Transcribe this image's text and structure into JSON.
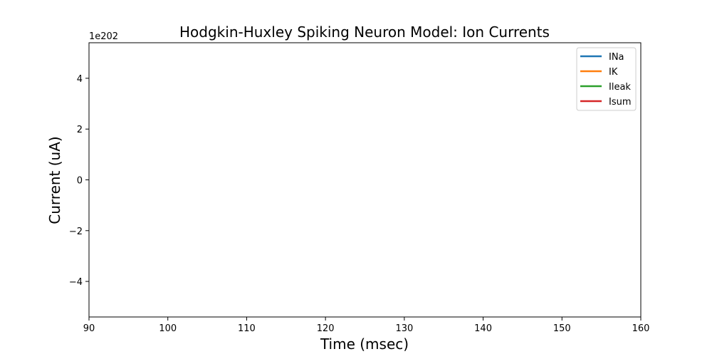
{
  "chart_data": {
    "type": "line",
    "title": "Hodgkin-Huxley Spiking Neuron Model: Ion Currents",
    "xlabel": "Time (msec)",
    "ylabel": "Current (uA)",
    "xlim": [
      90,
      160
    ],
    "ylim": [
      -5.4,
      5.4
    ],
    "y_offset_label": "1e202",
    "x_ticks": [
      90,
      100,
      110,
      120,
      130,
      140,
      150,
      160
    ],
    "x_tick_labels": [
      "90",
      "100",
      "110",
      "120",
      "130",
      "140",
      "150",
      "160"
    ],
    "y_ticks": [
      -4,
      -2,
      0,
      2,
      4
    ],
    "y_tick_labels": [
      "−4",
      "−2",
      "0",
      "2",
      "4"
    ],
    "grid": false,
    "legend_position": "top-right",
    "series": [
      {
        "name": "INa",
        "color": "#1f77b4",
        "x": [],
        "y": []
      },
      {
        "name": "IK",
        "color": "#ff7f0e",
        "x": [],
        "y": []
      },
      {
        "name": "Ileak",
        "color": "#2ca02c",
        "x": [],
        "y": []
      },
      {
        "name": "Isum",
        "color": "#d62728",
        "x": [],
        "y": []
      }
    ]
  }
}
